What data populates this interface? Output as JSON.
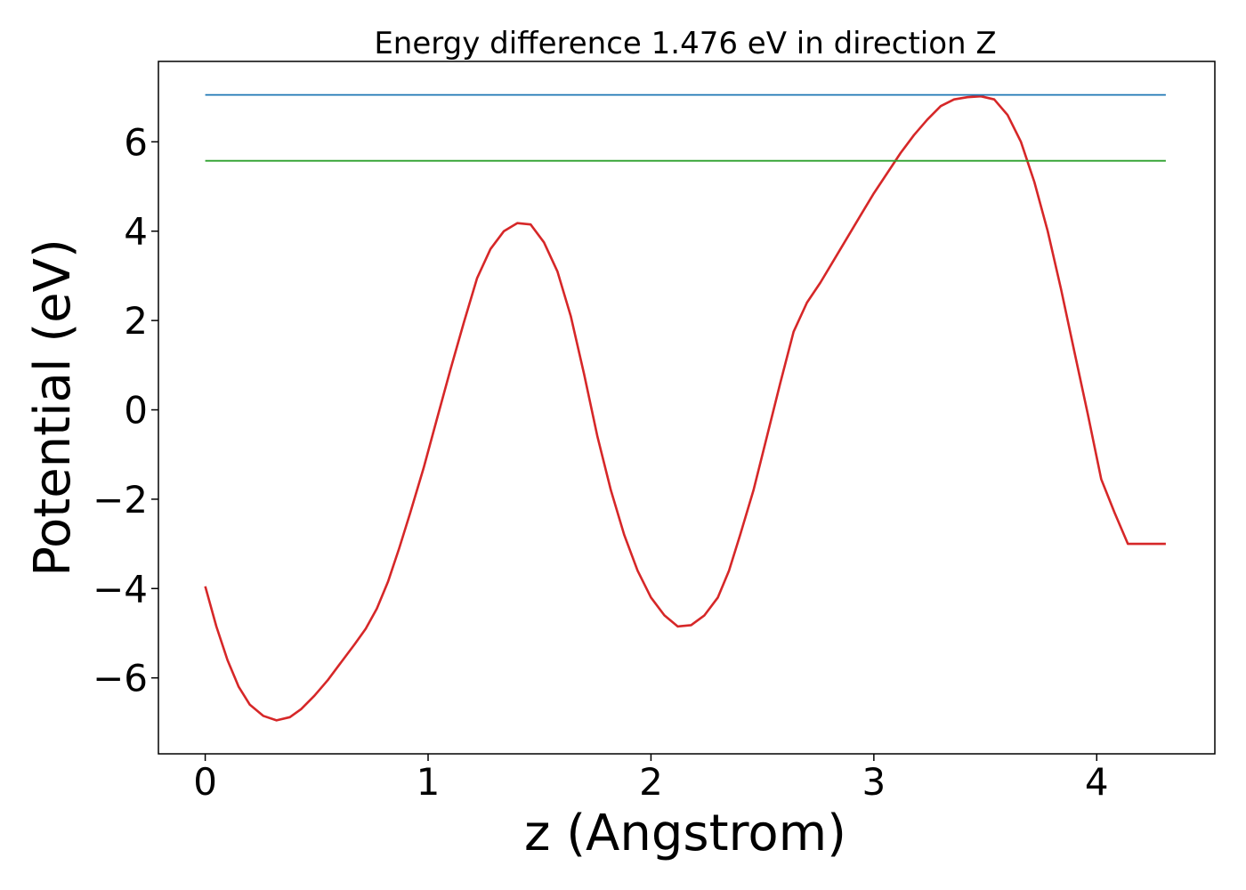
{
  "chart_data": {
    "type": "line",
    "title": "Energy difference 1.476 eV in direction Z",
    "xlabel": "z (Angstrom)",
    "ylabel": "Potential (eV)",
    "xlim": [
      -0.21,
      4.53
    ],
    "ylim": [
      -7.7,
      7.8
    ],
    "xticks": [
      0,
      1,
      2,
      3,
      4
    ],
    "yticks": [
      -6,
      -4,
      -2,
      0,
      2,
      4,
      6
    ],
    "ytick_labels": [
      "−6",
      "−4",
      "−2",
      "0",
      "2",
      "4",
      "6"
    ],
    "xtick_labels": [
      "0",
      "1",
      "2",
      "3",
      "4"
    ],
    "grid": false,
    "legend": "none",
    "series": [
      {
        "color": "#d62728",
        "kind": "curve",
        "x": [
          0.0,
          0.05,
          0.1,
          0.15,
          0.2,
          0.26,
          0.32,
          0.38,
          0.43,
          0.49,
          0.55,
          0.61,
          0.67,
          0.72,
          0.77,
          0.82,
          0.87,
          0.92,
          0.98,
          1.04,
          1.1,
          1.16,
          1.22,
          1.28,
          1.34,
          1.4,
          1.46,
          1.52,
          1.58,
          1.64,
          1.7,
          1.76,
          1.82,
          1.88,
          1.94,
          2.0,
          2.06,
          2.12,
          2.18,
          2.24,
          2.3,
          2.35,
          2.4,
          2.46,
          2.52,
          2.58,
          2.64,
          2.7,
          2.76,
          2.82,
          2.88,
          2.94,
          3.0,
          3.06,
          3.12,
          3.18,
          3.24,
          3.3,
          3.36,
          3.42,
          3.48,
          3.54,
          3.6,
          3.66,
          3.72,
          3.78,
          3.84,
          3.9,
          3.96,
          4.02,
          4.08,
          4.14,
          4.2,
          4.26,
          4.31
        ],
        "y": [
          -3.95,
          -4.85,
          -5.6,
          -6.2,
          -6.6,
          -6.85,
          -6.95,
          -6.88,
          -6.7,
          -6.4,
          -6.05,
          -5.65,
          -5.25,
          -4.9,
          -4.45,
          -3.85,
          -3.1,
          -2.3,
          -1.3,
          -0.2,
          0.9,
          1.95,
          2.95,
          3.6,
          4.0,
          4.18,
          4.15,
          3.75,
          3.1,
          2.1,
          0.8,
          -0.6,
          -1.8,
          -2.8,
          -3.6,
          -4.2,
          -4.6,
          -4.85,
          -4.82,
          -4.6,
          -4.2,
          -3.6,
          -2.8,
          -1.8,
          -0.6,
          0.6,
          1.75,
          2.4,
          2.85,
          3.35,
          3.85,
          4.35,
          4.85,
          5.3,
          5.75,
          6.15,
          6.5,
          6.8,
          6.95,
          7.0,
          7.02,
          6.95,
          6.6,
          6.0,
          5.1,
          4.0,
          2.7,
          1.3,
          -0.1,
          -1.55,
          -2.3,
          -3.0,
          -3.0,
          -3.0,
          -3.0
        ]
      },
      {
        "color": "#1f77b4",
        "kind": "hline",
        "x": [
          0.0,
          4.31
        ],
        "y": [
          7.05,
          7.05
        ]
      },
      {
        "color": "#2ca02c",
        "kind": "hline",
        "x": [
          0.0,
          4.31
        ],
        "y": [
          5.574,
          5.574
        ]
      }
    ]
  }
}
